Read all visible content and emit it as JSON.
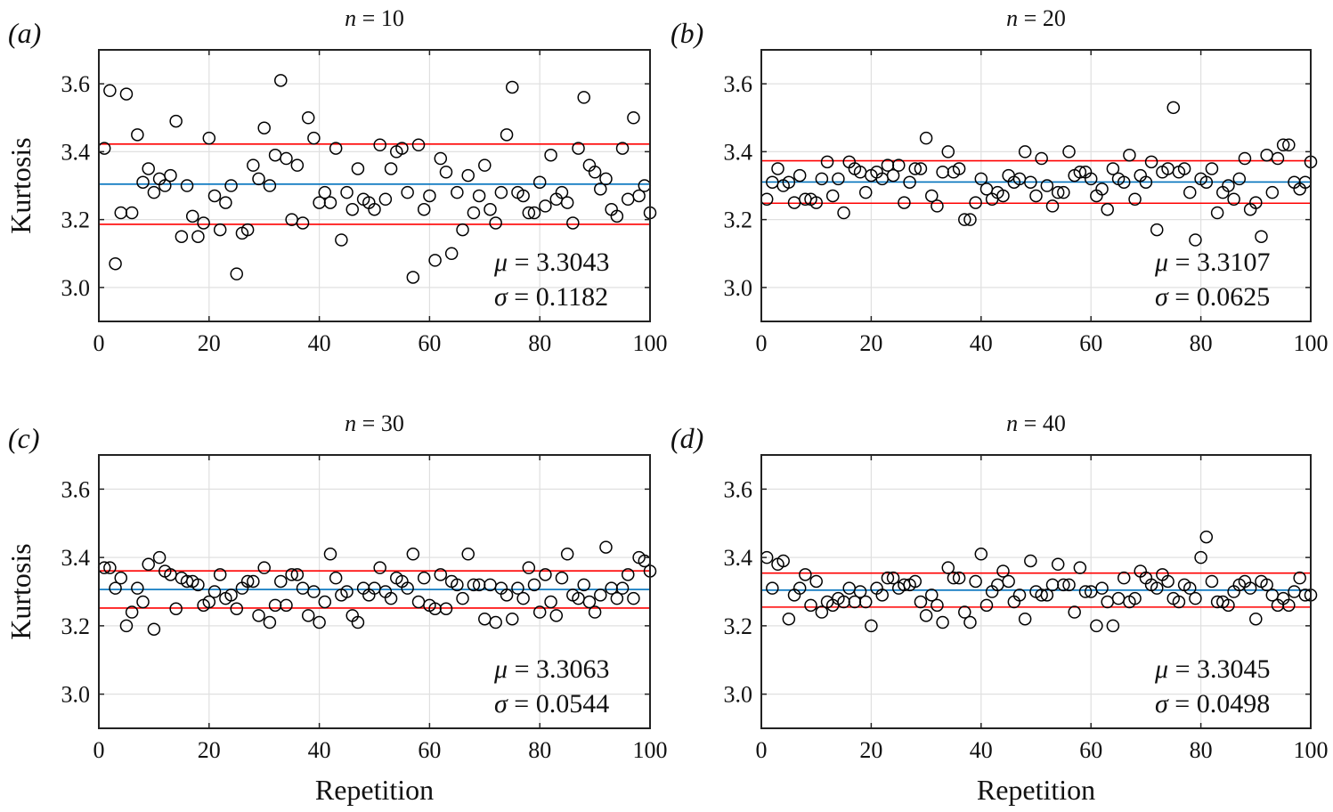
{
  "chart_data": {
    "type": "scatter",
    "shared": {
      "xlabel": "Repetition",
      "ylabel": "Kurtosis",
      "xlim": [
        0,
        100
      ],
      "ylim": [
        2.9,
        3.7
      ],
      "xticks": [
        0,
        20,
        40,
        60,
        80,
        100
      ],
      "yticks": [
        3.0,
        3.2,
        3.4,
        3.6
      ],
      "ytick_labels": [
        "3.0",
        "3.2",
        "3.4",
        "3.6"
      ],
      "grid": true,
      "colors": {
        "points": "#000000",
        "mean_line": "#0072bd",
        "sigma_lines": "#ff0000",
        "grid": "#e0e0e0"
      }
    },
    "panels": [
      {
        "label": "(a)",
        "title": "n = 10",
        "title_var": "n",
        "title_value": "= 10",
        "mu_text": "= 3.3043",
        "sigma_text": "= 0.1182",
        "mu": 3.3043,
        "sigma": 0.1182,
        "values": [
          3.41,
          3.58,
          3.07,
          3.22,
          3.57,
          3.22,
          3.45,
          3.31,
          3.35,
          3.28,
          3.32,
          3.3,
          3.33,
          3.49,
          3.15,
          3.3,
          3.21,
          3.15,
          3.19,
          3.44,
          3.27,
          3.17,
          3.25,
          3.3,
          3.04,
          3.16,
          3.17,
          3.36,
          3.32,
          3.47,
          3.3,
          3.39,
          3.61,
          3.38,
          3.2,
          3.36,
          3.19,
          3.5,
          3.44,
          3.25,
          3.28,
          3.25,
          3.41,
          3.14,
          3.28,
          3.23,
          3.35,
          3.26,
          3.25,
          3.23,
          3.42,
          3.26,
          3.35,
          3.4,
          3.41,
          3.28,
          3.03,
          3.42,
          3.23,
          3.27,
          3.08,
          3.38,
          3.34,
          3.1,
          3.28,
          3.17,
          3.33,
          3.22,
          3.27,
          3.36,
          3.23,
          3.19,
          3.28,
          3.45,
          3.59,
          3.28,
          3.27,
          3.22,
          3.22,
          3.31,
          3.24,
          3.39,
          3.26,
          3.28,
          3.25,
          3.19,
          3.41,
          3.56,
          3.36,
          3.34,
          3.29,
          3.32,
          3.23,
          3.21,
          3.41,
          3.26,
          3.5,
          3.27,
          3.3,
          3.22
        ]
      },
      {
        "label": "(b)",
        "title": "n = 20",
        "title_var": "n",
        "title_value": "= 20",
        "mu_text": "= 3.3107",
        "sigma_text": "= 0.0625",
        "mu": 3.3107,
        "sigma": 0.0625,
        "values": [
          3.26,
          3.31,
          3.35,
          3.3,
          3.31,
          3.25,
          3.33,
          3.26,
          3.26,
          3.25,
          3.32,
          3.37,
          3.27,
          3.32,
          3.22,
          3.37,
          3.35,
          3.34,
          3.28,
          3.33,
          3.34,
          3.32,
          3.36,
          3.33,
          3.36,
          3.25,
          3.31,
          3.35,
          3.35,
          3.44,
          3.27,
          3.24,
          3.34,
          3.4,
          3.34,
          3.35,
          3.2,
          3.2,
          3.25,
          3.32,
          3.29,
          3.26,
          3.28,
          3.27,
          3.33,
          3.31,
          3.32,
          3.4,
          3.31,
          3.27,
          3.38,
          3.3,
          3.24,
          3.28,
          3.28,
          3.4,
          3.33,
          3.34,
          3.34,
          3.32,
          3.27,
          3.29,
          3.23,
          3.35,
          3.32,
          3.31,
          3.39,
          3.26,
          3.33,
          3.31,
          3.37,
          3.17,
          3.34,
          3.35,
          3.53,
          3.34,
          3.35,
          3.28,
          3.14,
          3.32,
          3.31,
          3.35,
          3.22,
          3.28,
          3.3,
          3.26,
          3.32,
          3.38,
          3.23,
          3.25,
          3.15,
          3.39,
          3.28,
          3.38,
          3.42,
          3.42,
          3.31,
          3.29,
          3.31,
          3.37
        ]
      },
      {
        "label": "(c)",
        "title": "n = 30",
        "title_var": "n",
        "title_value": "= 30",
        "mu_text": "= 3.3063",
        "sigma_text": "= 0.0544",
        "mu": 3.3063,
        "sigma": 0.0544,
        "values": [
          3.37,
          3.37,
          3.31,
          3.34,
          3.2,
          3.24,
          3.31,
          3.27,
          3.38,
          3.19,
          3.4,
          3.36,
          3.35,
          3.25,
          3.34,
          3.33,
          3.33,
          3.32,
          3.26,
          3.27,
          3.3,
          3.35,
          3.28,
          3.29,
          3.25,
          3.31,
          3.33,
          3.33,
          3.23,
          3.37,
          3.21,
          3.26,
          3.33,
          3.26,
          3.35,
          3.35,
          3.31,
          3.23,
          3.3,
          3.21,
          3.27,
          3.41,
          3.34,
          3.29,
          3.3,
          3.23,
          3.21,
          3.31,
          3.29,
          3.31,
          3.37,
          3.3,
          3.28,
          3.34,
          3.33,
          3.31,
          3.41,
          3.27,
          3.34,
          3.26,
          3.25,
          3.35,
          3.25,
          3.33,
          3.32,
          3.28,
          3.41,
          3.32,
          3.32,
          3.22,
          3.32,
          3.21,
          3.31,
          3.29,
          3.22,
          3.31,
          3.28,
          3.37,
          3.32,
          3.24,
          3.35,
          3.27,
          3.23,
          3.34,
          3.41,
          3.29,
          3.28,
          3.32,
          3.27,
          3.24,
          3.29,
          3.43,
          3.31,
          3.28,
          3.31,
          3.35,
          3.28,
          3.4,
          3.39,
          3.36
        ]
      },
      {
        "label": "(d)",
        "title": "n = 40",
        "title_var": "n",
        "title_value": "= 40",
        "mu_text": "= 3.3045",
        "sigma_text": "= 0.0498",
        "mu": 3.3045,
        "sigma": 0.0498,
        "values": [
          3.4,
          3.31,
          3.38,
          3.39,
          3.22,
          3.29,
          3.31,
          3.35,
          3.26,
          3.33,
          3.24,
          3.27,
          3.26,
          3.28,
          3.27,
          3.31,
          3.27,
          3.3,
          3.27,
          3.2,
          3.31,
          3.29,
          3.34,
          3.34,
          3.31,
          3.32,
          3.32,
          3.33,
          3.27,
          3.23,
          3.29,
          3.26,
          3.21,
          3.37,
          3.34,
          3.34,
          3.24,
          3.21,
          3.33,
          3.41,
          3.26,
          3.3,
          3.32,
          3.36,
          3.33,
          3.27,
          3.29,
          3.22,
          3.39,
          3.3,
          3.29,
          3.29,
          3.32,
          3.38,
          3.32,
          3.32,
          3.24,
          3.37,
          3.3,
          3.3,
          3.2,
          3.31,
          3.27,
          3.2,
          3.28,
          3.34,
          3.27,
          3.28,
          3.36,
          3.34,
          3.32,
          3.31,
          3.35,
          3.33,
          3.28,
          3.27,
          3.32,
          3.31,
          3.28,
          3.4,
          3.46,
          3.33,
          3.27,
          3.27,
          3.26,
          3.3,
          3.32,
          3.33,
          3.31,
          3.22,
          3.33,
          3.32,
          3.29,
          3.26,
          3.28,
          3.26,
          3.3,
          3.34,
          3.29,
          3.29
        ]
      }
    ],
    "mu_symbol": "μ",
    "sigma_symbol": "σ"
  }
}
